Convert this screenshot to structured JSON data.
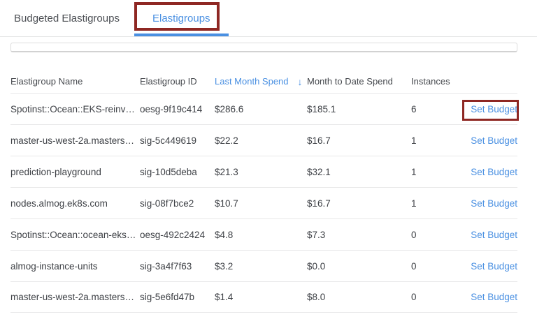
{
  "tabs": {
    "budgeted": {
      "label": "Budgeted Elastigroups",
      "active": false
    },
    "elastigroups": {
      "label": "Elastigroups",
      "active": true
    }
  },
  "filter": {
    "value": ""
  },
  "table": {
    "columns": [
      "Elastigroup Name",
      "Elastigroup ID",
      "Last Month Spend",
      "Month to Date Spend",
      "Instances"
    ],
    "sort": {
      "column": "Last Month Spend",
      "direction": "desc",
      "icon": "↓"
    },
    "rows": [
      {
        "name": "Spotinst::Ocean::EKS-reinv…",
        "id": "oesg-9f19c414",
        "last_month_spend": "$286.6",
        "month_to_date_spend": "$185.1",
        "instances": "6",
        "action": "Set Budget"
      },
      {
        "name": "master-us-west-2a.masters…",
        "id": "sig-5c449619",
        "last_month_spend": "$22.2",
        "month_to_date_spend": "$16.7",
        "instances": "1",
        "action": "Set Budget"
      },
      {
        "name": "prediction-playground",
        "id": "sig-10d5deba",
        "last_month_spend": "$21.3",
        "month_to_date_spend": "$32.1",
        "instances": "1",
        "action": "Set Budget"
      },
      {
        "name": "nodes.almog.ek8s.com",
        "id": "sig-08f7bce2",
        "last_month_spend": "$10.7",
        "month_to_date_spend": "$16.7",
        "instances": "1",
        "action": "Set Budget"
      },
      {
        "name": "Spotinst::Ocean::ocean-eks…",
        "id": "oesg-492c2424",
        "last_month_spend": "$4.8",
        "month_to_date_spend": "$7.3",
        "instances": "0",
        "action": "Set Budget"
      },
      {
        "name": "almog-instance-units",
        "id": "sig-3a4f7f63",
        "last_month_spend": "$3.2",
        "month_to_date_spend": "$0.0",
        "instances": "0",
        "action": "Set Budget"
      },
      {
        "name": "master-us-west-2a.masters…",
        "id": "sig-5e6fd47b",
        "last_month_spend": "$1.4",
        "month_to_date_spend": "$8.0",
        "instances": "0",
        "action": "Set Budget"
      }
    ]
  },
  "colors": {
    "accent_blue": "#4a90e2",
    "annotation_red": "#8e2723",
    "row_text": "#3e4146",
    "separator": "#e8e8e9"
  }
}
